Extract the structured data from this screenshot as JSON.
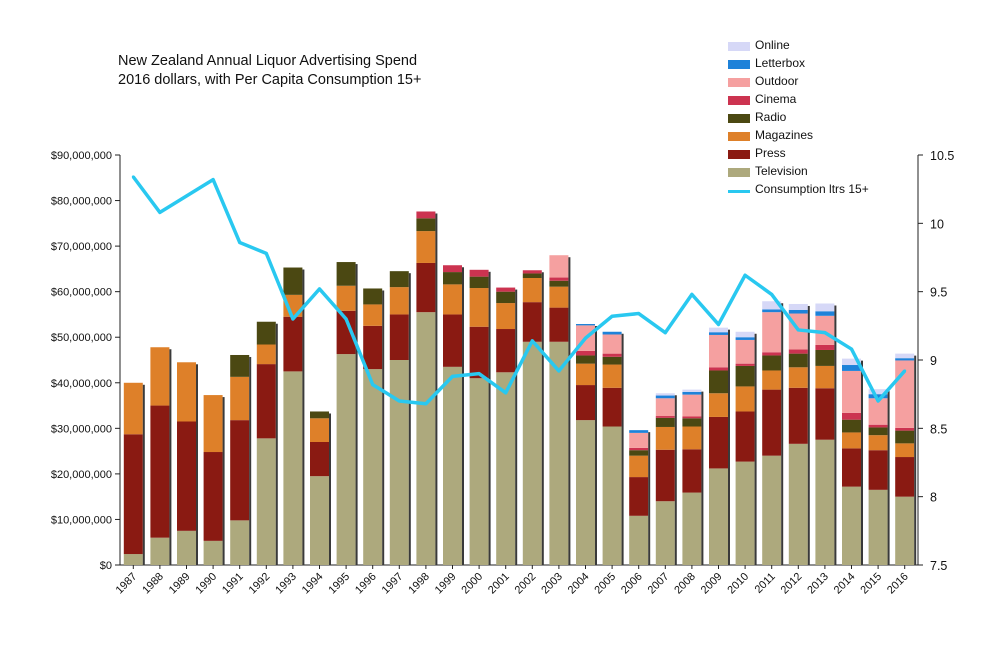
{
  "title_lines": [
    "New Zealand Annual Liquor Advertising Spend",
    "2016 dollars, with Per Capita Consumption 15+"
  ],
  "legend": [
    {
      "label": "Online",
      "color": "#d6d8f7",
      "kind": "box"
    },
    {
      "label": "Letterbox",
      "color": "#1e82d9",
      "kind": "box"
    },
    {
      "label": "Outdoor",
      "color": "#f5a0a0",
      "kind": "box"
    },
    {
      "label": "Cinema",
      "color": "#cc3350",
      "kind": "box"
    },
    {
      "label": "Radio",
      "color": "#4b4812",
      "kind": "box"
    },
    {
      "label": "Magazines",
      "color": "#de8029",
      "kind": "box"
    },
    {
      "label": "Press",
      "color": "#8a1a12",
      "kind": "box"
    },
    {
      "label": "Television",
      "color": "#ada97d",
      "kind": "box"
    },
    {
      "label": "Consumption ltrs 15+",
      "color": "#29c8f0",
      "kind": "line"
    }
  ],
  "chart_data": {
    "type": "bar",
    "stacked": true,
    "title": "New Zealand Annual Liquor Advertising Spend 2016 dollars, with Per Capita Consumption 15+",
    "categories": [
      "1987",
      "1988",
      "1989",
      "1990",
      "1991",
      "1992",
      "1993",
      "1994",
      "1995",
      "1996",
      "1997",
      "1998",
      "1999",
      "2000",
      "2001",
      "2002",
      "2003",
      "2004",
      "2005",
      "2006",
      "2007",
      "2008",
      "2009",
      "2010",
      "2011",
      "2012",
      "2013",
      "2014",
      "2015",
      "2016"
    ],
    "y_left": {
      "ylim": [
        0,
        90000000
      ],
      "ticks": [
        "$0",
        "$10,000,000",
        "$20,000,000",
        "$30,000,000",
        "$40,000,000",
        "$50,000,000",
        "$60,000,000",
        "$70,000,000",
        "$80,000,000",
        "$90,000,000"
      ]
    },
    "y_right": {
      "ylim": [
        7.5,
        10.5
      ],
      "ticks": [
        "7.5",
        "8",
        "8.5",
        "9",
        "9.5",
        "10",
        "10.5"
      ]
    },
    "series": [
      {
        "name": "Television",
        "color": "#ada97d",
        "values": [
          2400000,
          6000000,
          7500000,
          5300000,
          9800000,
          27800000,
          42500000,
          19500000,
          46300000,
          43000000,
          45000000,
          55500000,
          43500000,
          41000000,
          42300000,
          49000000,
          49000000,
          31800000,
          30400000,
          10800000,
          14000000,
          15900000,
          21200000,
          22700000,
          24000000,
          26600000,
          27500000,
          17200000,
          16500000,
          15000000
        ]
      },
      {
        "name": "Press",
        "color": "#8a1a12",
        "values": [
          26300000,
          29000000,
          24000000,
          19500000,
          22000000,
          16300000,
          12000000,
          7500000,
          9500000,
          9500000,
          10000000,
          10800000,
          11500000,
          11300000,
          9500000,
          8700000,
          7500000,
          7700000,
          8500000,
          8500000,
          11300000,
          9500000,
          11300000,
          11000000,
          14500000,
          12300000,
          11300000,
          8400000,
          8700000,
          8700000
        ]
      },
      {
        "name": "Magazines",
        "color": "#de8029",
        "values": [
          11300000,
          12800000,
          13000000,
          12500000,
          9500000,
          4300000,
          4800000,
          5200000,
          5500000,
          4700000,
          6000000,
          7000000,
          6600000,
          8500000,
          5700000,
          5300000,
          4600000,
          4700000,
          5100000,
          4700000,
          5000000,
          5000000,
          5200000,
          5500000,
          4200000,
          4500000,
          4900000,
          3500000,
          3300000,
          3000000
        ]
      },
      {
        "name": "Radio",
        "color": "#4b4812",
        "values": [
          0,
          0,
          0,
          0,
          4800000,
          5000000,
          6000000,
          1500000,
          5200000,
          3500000,
          3500000,
          2800000,
          2700000,
          2500000,
          2500000,
          1000000,
          1300000,
          1800000,
          1700000,
          1200000,
          2000000,
          1800000,
          5000000,
          4500000,
          3300000,
          3000000,
          3500000,
          2800000,
          1700000,
          2800000
        ]
      },
      {
        "name": "Cinema",
        "color": "#cc3350",
        "values": [
          0,
          0,
          0,
          0,
          0,
          0,
          0,
          0,
          0,
          0,
          0,
          1500000,
          1500000,
          1500000,
          900000,
          700000,
          700000,
          1000000,
          700000,
          500000,
          400000,
          400000,
          700000,
          500000,
          700000,
          900000,
          1100000,
          1500000,
          600000,
          600000
        ]
      },
      {
        "name": "Outdoor",
        "color": "#f5a0a0",
        "values": [
          0,
          0,
          0,
          0,
          0,
          0,
          0,
          0,
          0,
          0,
          0,
          0,
          0,
          0,
          0,
          0,
          4900000,
          5600000,
          4200000,
          3300000,
          3900000,
          4800000,
          7100000,
          5200000,
          8800000,
          7900000,
          6400000,
          9200000,
          5800000,
          14800000
        ]
      },
      {
        "name": "Letterbox",
        "color": "#1e82d9",
        "values": [
          0,
          0,
          0,
          0,
          0,
          0,
          0,
          0,
          0,
          0,
          0,
          0,
          0,
          0,
          0,
          0,
          0,
          300000,
          600000,
          600000,
          600000,
          600000,
          600000,
          600000,
          600000,
          800000,
          1000000,
          1300000,
          900000,
          500000
        ]
      },
      {
        "name": "Online",
        "color": "#d6d8f7",
        "values": [
          0,
          0,
          0,
          0,
          0,
          0,
          0,
          0,
          0,
          0,
          0,
          0,
          0,
          0,
          0,
          0,
          0,
          0,
          0,
          0,
          500000,
          500000,
          1000000,
          1200000,
          1800000,
          1300000,
          1700000,
          1400000,
          1100000,
          1000000
        ]
      }
    ],
    "line_series": {
      "name": "Consumption ltrs 15+",
      "color": "#29c8f0",
      "axis": "right",
      "values": [
        10.34,
        10.08,
        10.2,
        10.32,
        9.86,
        9.78,
        9.3,
        9.52,
        9.3,
        8.82,
        8.7,
        8.68,
        8.88,
        8.9,
        8.76,
        9.14,
        8.92,
        9.16,
        9.32,
        9.34,
        9.2,
        9.48,
        9.26,
        9.62,
        9.48,
        9.22,
        9.2,
        9.08,
        8.7,
        8.92
      ]
    }
  }
}
